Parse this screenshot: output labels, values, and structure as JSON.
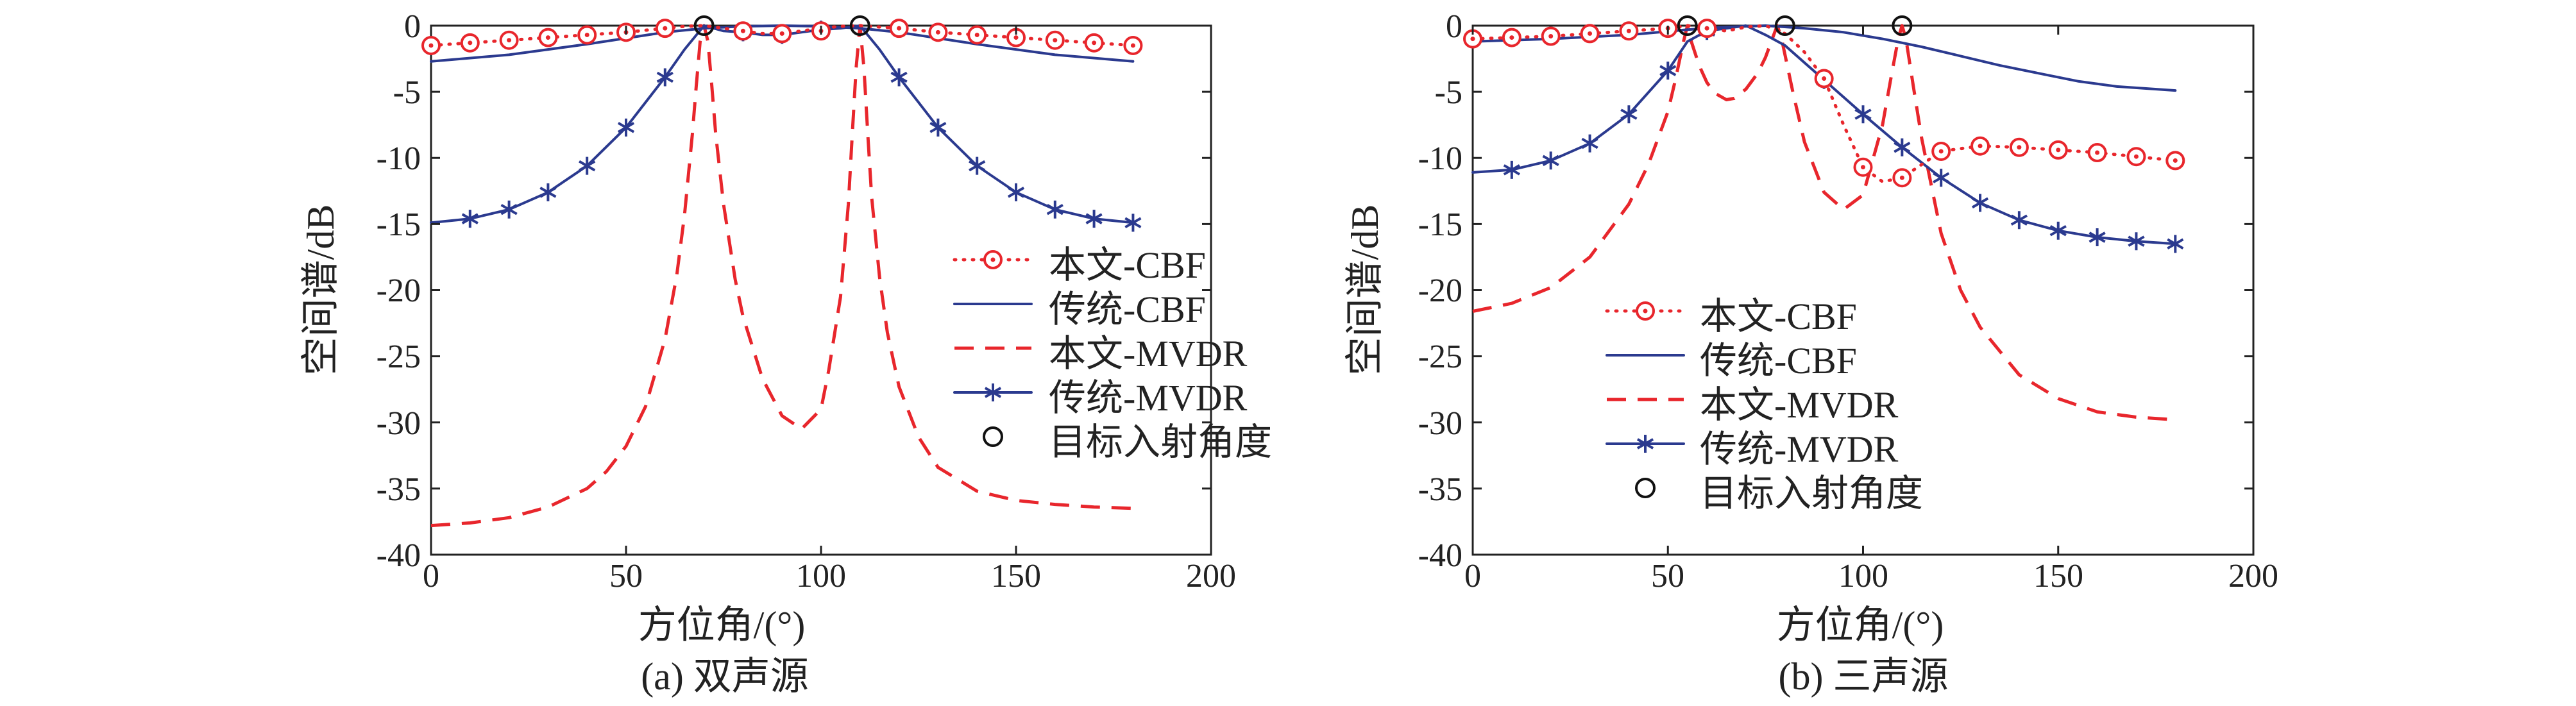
{
  "chart_data": [
    {
      "type": "line",
      "caption": "(a) 双声源",
      "xlabel": "方位角/(°)",
      "ylabel": "空间谱/dB",
      "xlim": [
        0,
        200
      ],
      "ylim": [
        -40,
        0
      ],
      "xticks": [
        "0",
        "50",
        "100",
        "150",
        "200"
      ],
      "yticks": [
        "0",
        "-5",
        "-10",
        "-15",
        "-20",
        "-25",
        "-30",
        "-35",
        "-40"
      ],
      "legend_position": "right-middle",
      "series": [
        {
          "name": "本文-CBF",
          "color": "#e8262c",
          "style": "dotted",
          "marker": "circle-dot",
          "x": [
            0,
            10,
            20,
            30,
            40,
            50,
            60,
            65,
            70,
            75,
            80,
            85,
            90,
            95,
            100,
            105,
            110,
            115,
            120,
            130,
            140,
            150,
            160,
            170,
            180
          ],
          "y": [
            -1.5,
            -1.3,
            -1.1,
            -0.9,
            -0.7,
            -0.5,
            -0.2,
            -0.05,
            0,
            -0.2,
            -0.4,
            -0.6,
            -0.6,
            -0.4,
            -0.2,
            -0.05,
            0,
            -0.1,
            -0.2,
            -0.5,
            -0.7,
            -0.9,
            -1.1,
            -1.3,
            -1.5
          ],
          "marker_x": [
            0,
            10,
            20,
            30,
            40,
            50,
            60,
            80,
            90,
            100,
            120,
            130,
            140,
            150,
            160,
            170,
            180
          ],
          "marker_y": [
            -1.5,
            -1.3,
            -1.1,
            -0.9,
            -0.7,
            -0.5,
            -0.2,
            -0.4,
            -0.6,
            -0.4,
            -0.2,
            -0.5,
            -0.7,
            -0.9,
            -1.1,
            -1.3,
            -1.5
          ]
        },
        {
          "name": "传统-CBF",
          "color": "#2b3a8f",
          "style": "solid",
          "marker": "none",
          "x": [
            0,
            20,
            40,
            60,
            70,
            80,
            90,
            100,
            110,
            120,
            140,
            160,
            180
          ],
          "y": [
            -2.7,
            -2.2,
            -1.4,
            -0.5,
            -0.2,
            -0.05,
            0,
            -0.05,
            -0.2,
            -0.5,
            -1.4,
            -2.2,
            -2.7
          ],
          "marker_x": [],
          "marker_y": []
        },
        {
          "name": "本文-MVDR",
          "color": "#e8262c",
          "style": "dashed",
          "marker": "none",
          "x": [
            0,
            10,
            20,
            30,
            40,
            45,
            50,
            55,
            60,
            63,
            65,
            67,
            68,
            69,
            70,
            71,
            72,
            73,
            75,
            78,
            80,
            85,
            90,
            95,
            100,
            102,
            105,
            107,
            108,
            109,
            110,
            111,
            112,
            113,
            115,
            117,
            120,
            125,
            130,
            140,
            150,
            160,
            170,
            180
          ],
          "y": [
            -37.8,
            -37.6,
            -37.2,
            -36.4,
            -35.0,
            -33.7,
            -31.8,
            -28.8,
            -23.7,
            -18.9,
            -14.3,
            -8.2,
            -4.6,
            -1.2,
            0,
            -1.2,
            -4.6,
            -8.2,
            -13.5,
            -19.2,
            -22.0,
            -26.7,
            -29.5,
            -30.5,
            -29.0,
            -26.0,
            -20.5,
            -13.5,
            -8.3,
            -3.2,
            0,
            -3.2,
            -8.3,
            -13.0,
            -19.0,
            -23.2,
            -27.3,
            -31.1,
            -33.4,
            -35.2,
            -35.9,
            -36.2,
            -36.4,
            -36.5
          ],
          "marker_x": [],
          "marker_y": []
        },
        {
          "name": "传统-MVDR",
          "color": "#2b3a8f",
          "style": "solid",
          "marker": "asterisk",
          "x": [
            0,
            10,
            20,
            30,
            40,
            50,
            60,
            65,
            70,
            75,
            80,
            85,
            90,
            95,
            100,
            105,
            110,
            115,
            120,
            130,
            140,
            150,
            160,
            170,
            180
          ],
          "y": [
            -14.9,
            -14.6,
            -13.9,
            -12.6,
            -10.6,
            -7.7,
            -3.9,
            -1.8,
            0,
            -0.4,
            -0.5,
            -0.7,
            -0.7,
            -0.5,
            -0.3,
            -0.2,
            0,
            -1.8,
            -3.9,
            -7.7,
            -10.6,
            -12.6,
            -13.9,
            -14.6,
            -14.9
          ],
          "marker_x": [
            10,
            20,
            30,
            40,
            50,
            60,
            80,
            90,
            100,
            120,
            130,
            140,
            150,
            160,
            170,
            180
          ],
          "marker_y": [
            -14.6,
            -13.9,
            -12.6,
            -10.6,
            -7.7,
            -3.9,
            -0.5,
            -0.7,
            -0.3,
            -3.9,
            -7.7,
            -10.6,
            -12.6,
            -13.9,
            -14.6,
            -14.9
          ]
        },
        {
          "name": "目标入射角度",
          "color": "#111111",
          "style": "none",
          "marker": "open-circle",
          "x": [],
          "y": [],
          "marker_x": [
            70,
            110
          ],
          "marker_y": [
            0,
            0
          ]
        }
      ]
    },
    {
      "type": "line",
      "caption": "(b) 三声源",
      "xlabel": "方位角/(°)",
      "ylabel": "空间谱/dB",
      "xlim": [
        0,
        200
      ],
      "ylim": [
        -40,
        0
      ],
      "xticks": [
        "0",
        "50",
        "100",
        "150",
        "200"
      ],
      "yticks": [
        "0",
        "-5",
        "-10",
        "-15",
        "-20",
        "-25",
        "-30",
        "-35",
        "-40"
      ],
      "legend_position": "bottom-left",
      "series": [
        {
          "name": "本文-CBF",
          "color": "#e8262c",
          "style": "dotted",
          "marker": "circle-dot",
          "x": [
            0,
            10,
            20,
            30,
            40,
            50,
            55,
            60,
            65,
            70,
            75,
            80,
            85,
            90,
            95,
            100,
            105,
            110,
            115,
            120,
            130,
            140,
            150,
            160,
            170,
            180
          ],
          "y": [
            -1.0,
            -0.9,
            -0.8,
            -0.6,
            -0.4,
            -0.2,
            0,
            -0.2,
            -0.4,
            -0.1,
            0,
            -0.6,
            -2.0,
            -4.0,
            -7.5,
            -10.7,
            -11.8,
            -11.5,
            -10.5,
            -9.5,
            -9.1,
            -9.2,
            -9.4,
            -9.6,
            -9.9,
            -10.2
          ],
          "marker_x": [
            0,
            10,
            20,
            30,
            40,
            50,
            60,
            90,
            100,
            110,
            120,
            130,
            140,
            150,
            160,
            170,
            180
          ],
          "marker_y": [
            -1.0,
            -0.9,
            -0.8,
            -0.6,
            -0.4,
            -0.2,
            -0.2,
            -4.0,
            -10.7,
            -11.5,
            -9.5,
            -9.1,
            -9.2,
            -9.4,
            -9.6,
            -9.9,
            -10.2
          ]
        },
        {
          "name": "传统-CBF",
          "color": "#2b3a8f",
          "style": "solid",
          "marker": "none",
          "x": [
            0,
            20,
            40,
            55,
            65,
            75,
            85,
            95,
            105,
            115,
            125,
            135,
            145,
            155,
            165,
            180
          ],
          "y": [
            -1.2,
            -1.0,
            -0.7,
            -0.3,
            -0.1,
            0,
            -0.2,
            -0.5,
            -1.0,
            -1.6,
            -2.3,
            -3.0,
            -3.6,
            -4.2,
            -4.6,
            -4.9
          ],
          "marker_x": [],
          "marker_y": []
        },
        {
          "name": "本文-MVDR",
          "color": "#e8262c",
          "style": "dashed",
          "marker": "none",
          "x": [
            0,
            10,
            20,
            30,
            40,
            45,
            50,
            52,
            54,
            55,
            56,
            58,
            60,
            62,
            65,
            67,
            70,
            73,
            75,
            77,
            78,
            79,
            80,
            82,
            85,
            90,
            95,
            100,
            105,
            107,
            109,
            110,
            111,
            113,
            115,
            120,
            125,
            130,
            140,
            150,
            160,
            170,
            180
          ],
          "y": [
            -21.6,
            -21.0,
            -19.8,
            -17.5,
            -13.5,
            -10.5,
            -6.5,
            -4.0,
            -1.2,
            0,
            -1.2,
            -3.0,
            -4.3,
            -5.1,
            -5.6,
            -5.5,
            -4.8,
            -3.6,
            -2.4,
            -0.8,
            0,
            -0.8,
            -2.2,
            -5.0,
            -8.8,
            -12.6,
            -13.9,
            -12.8,
            -7.5,
            -4.2,
            -1.0,
            0,
            -1.0,
            -4.8,
            -8.5,
            -15.7,
            -20.0,
            -22.8,
            -26.4,
            -28.2,
            -29.2,
            -29.6,
            -29.8
          ],
          "marker_x": [],
          "marker_y": []
        },
        {
          "name": "传统-MVDR",
          "color": "#2b3a8f",
          "style": "solid",
          "marker": "asterisk",
          "x": [
            0,
            10,
            20,
            30,
            40,
            50,
            55,
            60,
            65,
            70,
            75,
            80,
            90,
            100,
            110,
            120,
            130,
            140,
            150,
            160,
            170,
            180
          ],
          "y": [
            -11.1,
            -10.9,
            -10.2,
            -8.9,
            -6.7,
            -3.4,
            -1.2,
            -0.4,
            -0.2,
            0,
            -0.7,
            -1.5,
            -4.1,
            -6.7,
            -9.2,
            -11.5,
            -13.4,
            -14.7,
            -15.5,
            -16.0,
            -16.3,
            -16.5
          ],
          "marker_x": [
            10,
            20,
            30,
            40,
            50,
            60,
            90,
            100,
            110,
            120,
            130,
            140,
            150,
            160,
            170,
            180
          ],
          "marker_y": [
            -10.9,
            -10.2,
            -8.9,
            -6.7,
            -3.4,
            -0.4,
            -4.1,
            -6.7,
            -9.2,
            -11.5,
            -13.4,
            -14.7,
            -15.5,
            -16.0,
            -16.3,
            -16.5
          ]
        },
        {
          "name": "目标入射角度",
          "color": "#111111",
          "style": "none",
          "marker": "open-circle",
          "x": [],
          "y": [],
          "marker_x": [
            55,
            80,
            110
          ],
          "marker_y": [
            0,
            0,
            0
          ]
        }
      ]
    }
  ]
}
